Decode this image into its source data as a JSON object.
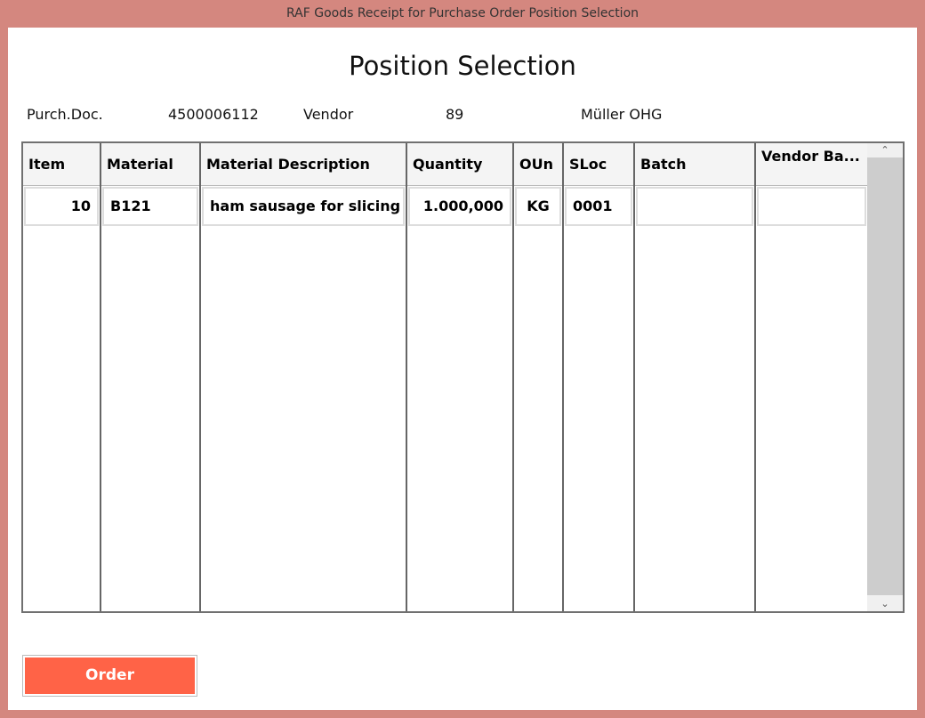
{
  "window": {
    "title": "RAF Goods Receipt for Purchase Order Position Selection"
  },
  "page": {
    "title": "Position Selection"
  },
  "header_info": {
    "purch_doc_label": "Purch.Doc.",
    "purch_doc_value": "4500006112",
    "vendor_label": "Vendor",
    "vendor_value": "89",
    "vendor_name": "Müller OHG"
  },
  "table": {
    "columns": [
      "Item",
      "Material",
      "Material Description",
      "Quantity",
      "OUn",
      "SLoc",
      "Batch",
      "Vendor Ba..."
    ],
    "rows": [
      [
        "10",
        "B121",
        "ham sausage for slicing",
        "1.000,000",
        "KG",
        "0001",
        "",
        ""
      ]
    ]
  },
  "actions": {
    "order_label": "Order"
  },
  "colors": {
    "accent": "#ff6347",
    "window_border": "#d4877f"
  }
}
